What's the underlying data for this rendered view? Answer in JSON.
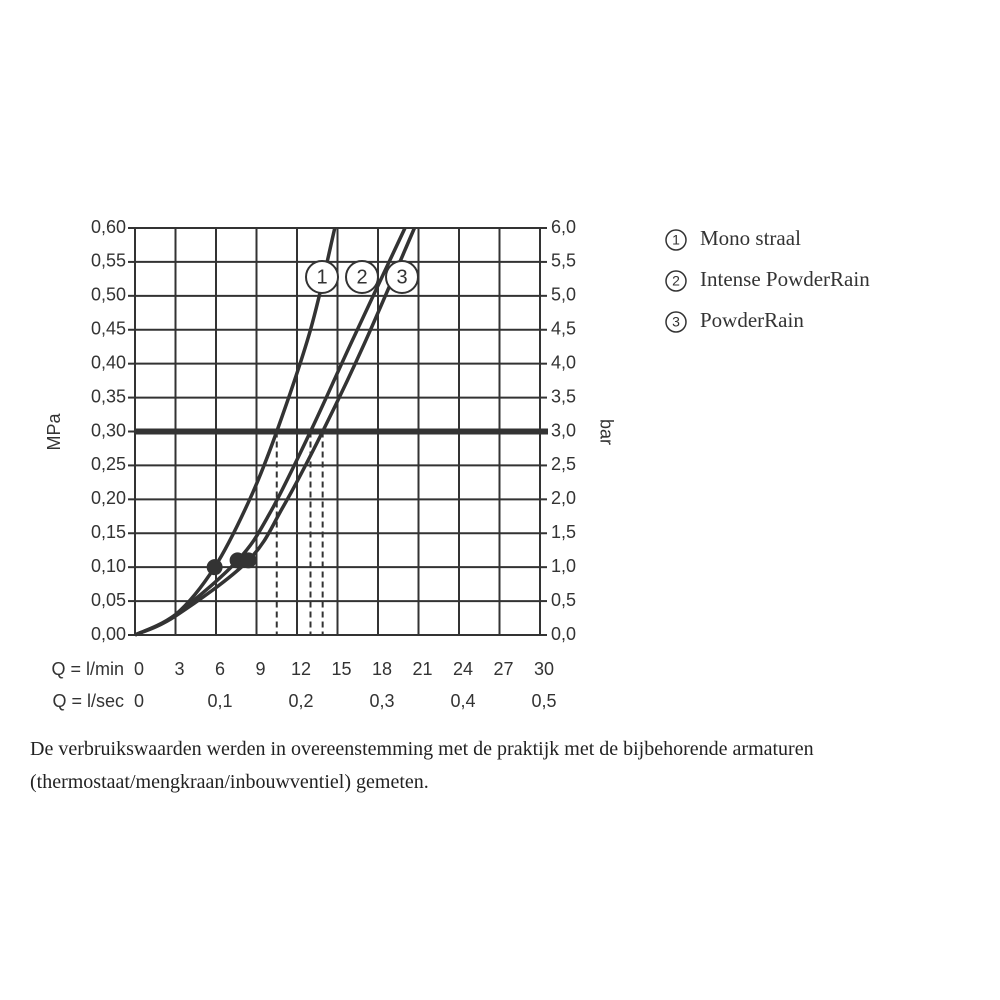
{
  "chart_data": {
    "type": "line",
    "y_label": "MPa",
    "y2_label": "bar",
    "x_label": "Q = l/min",
    "x2_label": "Q = l/sec",
    "xlim": [
      0,
      30
    ],
    "xticks": [
      0,
      3,
      6,
      9,
      12,
      15,
      18,
      21,
      24,
      27,
      30
    ],
    "x2lim": [
      0,
      0.5
    ],
    "x2ticks": [
      0,
      {
        "value": 0.1,
        "label": "0,1"
      },
      {
        "value": 0.2,
        "label": "0,2"
      },
      {
        "value": 0.3,
        "label": "0,3"
      },
      {
        "value": 0.4,
        "label": "0,4"
      },
      {
        "value": 0.5,
        "label": "0,5"
      }
    ],
    "ylim": [
      0,
      0.6
    ],
    "yticks": [
      {
        "value": 0,
        "label": "0,00"
      },
      {
        "value": 0.05,
        "label": "0,05"
      },
      {
        "value": 0.1,
        "label": "0,10"
      },
      {
        "value": 0.15,
        "label": "0,15"
      },
      {
        "value": 0.2,
        "label": "0,20"
      },
      {
        "value": 0.25,
        "label": "0,25"
      },
      {
        "value": 0.3,
        "label": "0,30"
      },
      {
        "value": 0.35,
        "label": "0,35"
      },
      {
        "value": 0.4,
        "label": "0,40"
      },
      {
        "value": 0.45,
        "label": "0,45"
      },
      {
        "value": 0.5,
        "label": "0,50"
      },
      {
        "value": 0.55,
        "label": "0,55"
      },
      {
        "value": 0.6,
        "label": "0,60"
      }
    ],
    "y2lim": [
      0,
      6
    ],
    "y2ticks": [
      {
        "value": 0,
        "label": "0,0"
      },
      {
        "value": 0.5,
        "label": "0,5"
      },
      {
        "value": 1,
        "label": "1,0"
      },
      {
        "value": 1.5,
        "label": "1,5"
      },
      {
        "value": 2,
        "label": "2,0"
      },
      {
        "value": 2.5,
        "label": "2,5"
      },
      {
        "value": 3,
        "label": "3,0"
      },
      {
        "value": 3.5,
        "label": "3,5"
      },
      {
        "value": 4,
        "label": "4,0"
      },
      {
        "value": 4.5,
        "label": "4,5"
      },
      {
        "value": 5,
        "label": "5,0"
      },
      {
        "value": 5.5,
        "label": "5,5"
      },
      {
        "value": 6,
        "label": "6,0"
      }
    ],
    "grid": true,
    "color": "#333333",
    "reference_line": 0.3,
    "series": [
      {
        "label": "1",
        "name": "Mono straal",
        "x": [
          0,
          3,
          5.9,
          8.5,
          10.5,
          13,
          14.8
        ],
        "y": [
          0,
          0.03,
          0.1,
          0.2,
          0.3,
          0.45,
          0.6
        ],
        "dot_x": 5.9,
        "dot_y": 0.1
      },
      {
        "label": "2",
        "name": "Intense PowderRain",
        "x": [
          0,
          3,
          7.6,
          10,
          13,
          16,
          20
        ],
        "y": [
          0,
          0.03,
          0.11,
          0.18,
          0.3,
          0.43,
          0.6
        ],
        "dot_x": 7.6,
        "dot_y": 0.11
      },
      {
        "label": "3",
        "name": "PowderRain",
        "x": [
          0,
          3,
          8.4,
          11,
          13.9,
          17,
          20.7
        ],
        "y": [
          0,
          0.028,
          0.11,
          0.19,
          0.3,
          0.43,
          0.6
        ],
        "dot_x": 8.4,
        "dot_y": 0.11
      }
    ]
  },
  "footer": "De verbruikswaarden werden in overeenstemming met de praktijk met de bijbehorende armaturen (thermostaat/mengkraan/inbouwventiel) gemeten."
}
